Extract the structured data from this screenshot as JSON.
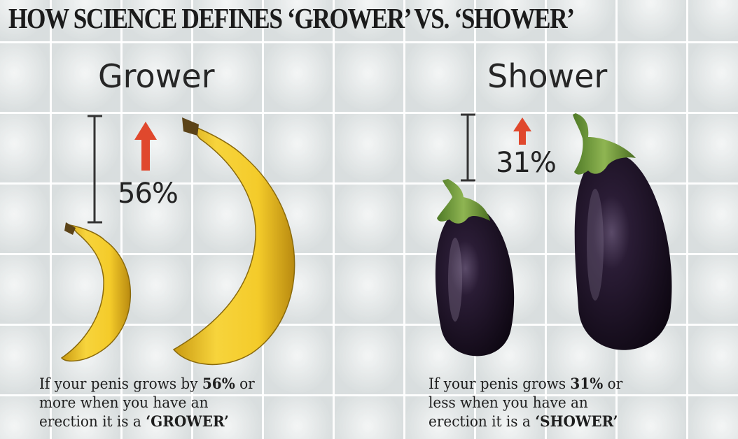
{
  "title": "HOW SCIENCE DEFINES ‘GROWER’ VS. ‘SHOWER’",
  "grower": {
    "heading": "Grower",
    "percent": "56%",
    "caption": {
      "line1_pre": "If your penis grows by ",
      "line1_bold": "56%",
      "line1_post": " or",
      "line2": "more when you have an",
      "line3_pre": "erection it is a ",
      "line3_bold": "‘GROWER’"
    }
  },
  "shower": {
    "heading": "Shower",
    "percent": "31%",
    "caption": {
      "line1_pre": "If your penis grows ",
      "line1_bold": "31%",
      "line1_post": " or",
      "line2": "less when you have an",
      "line3_pre": "erection it is a ",
      "line3_bold": "‘SHOWER’"
    }
  },
  "colors": {
    "arrow": "#e0482d",
    "banana": "#f1c82a",
    "eggplant": "#1a0f22",
    "stem": "#6e9a3a"
  }
}
